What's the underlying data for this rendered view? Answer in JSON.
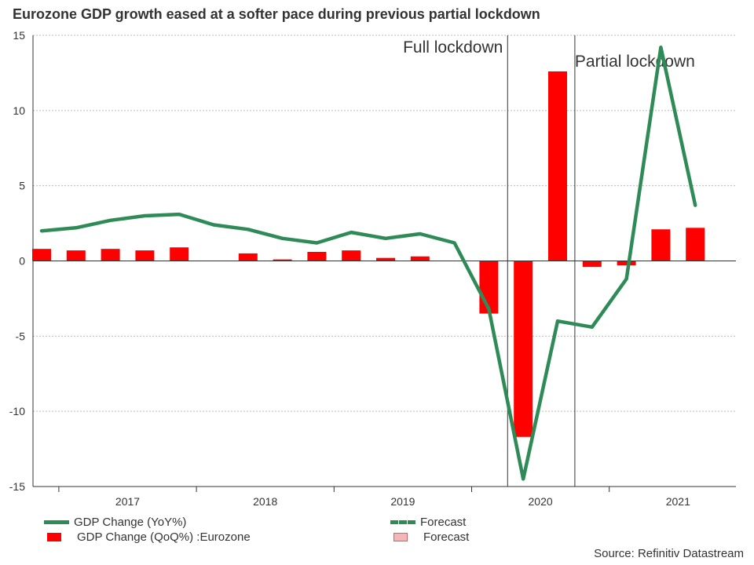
{
  "title": "Eurozone GDP growth eased at a softer pace during previous partial lockdown",
  "source": "Source: Refinitiv Datastream",
  "colors": {
    "line": "#2e8b57",
    "bar": "#ff0000",
    "forecast_bar": "#f4b6b6",
    "grid": "#bbbbbb",
    "axis": "#333333"
  },
  "legend": [
    {
      "label": "GDP Change (YoY%)",
      "kind": "line",
      "color": "#2e8b57"
    },
    {
      "label": "Forecast",
      "kind": "dashed-line",
      "color": "#2e8b57"
    },
    {
      "label": "GDP Change (QoQ%) :Eurozone",
      "kind": "bar",
      "color": "#ff0000"
    },
    {
      "label": "Forecast",
      "kind": "bar",
      "color": "#f4b6b6"
    }
  ],
  "chart_data": {
    "type": "bar",
    "title": "Eurozone GDP growth eased at a softer pace during previous partial lockdown",
    "xlabel": "",
    "ylabel": "",
    "ylim": [
      -15,
      15
    ],
    "yticks": [
      15,
      10,
      5,
      0,
      -5,
      -10,
      -15
    ],
    "grid": true,
    "x_tick_labels": [
      "2017",
      "2018",
      "2019",
      "2020",
      "2021"
    ],
    "quarters": [
      "2016 Q4",
      "2017 Q1",
      "2017 Q2",
      "2017 Q3",
      "2017 Q4",
      "2018 Q1",
      "2018 Q2",
      "2018 Q3",
      "2018 Q4",
      "2019 Q1",
      "2019 Q2",
      "2019 Q3",
      "2019 Q4",
      "2020 Q1",
      "2020 Q2",
      "2020 Q3",
      "2020 Q4",
      "2021 Q1",
      "2021 Q2",
      "2021 Q3"
    ],
    "series": [
      {
        "name": "GDP Change (QoQ%) :Eurozone",
        "type": "bar",
        "values": [
          0.8,
          0.7,
          0.8,
          0.7,
          0.9,
          null,
          0.5,
          0.1,
          0.6,
          0.7,
          0.2,
          0.3,
          null,
          -3.5,
          -11.7,
          12.6,
          -0.4,
          -0.3,
          2.1,
          2.2
        ]
      },
      {
        "name": "GDP Change (YoY%)",
        "type": "line",
        "values": [
          2.0,
          2.2,
          2.7,
          3.0,
          3.1,
          2.4,
          2.1,
          1.5,
          1.2,
          1.9,
          1.5,
          1.8,
          1.2,
          -3.2,
          -14.5,
          -4.0,
          -4.4,
          -1.2,
          14.2,
          3.7
        ]
      }
    ],
    "annotations": [
      {
        "text": "Full lockdown",
        "x_quarter_boundary": "2020 Q2"
      },
      {
        "text": "Partial lockdown",
        "x_quarter_boundary": "2020 Q4"
      }
    ],
    "legend_position": "bottom"
  }
}
